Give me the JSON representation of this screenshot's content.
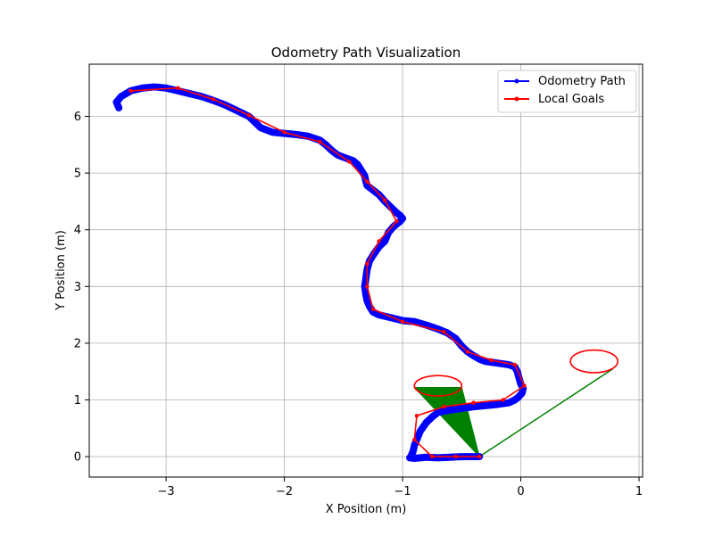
{
  "chart_data": {
    "type": "line",
    "title": "Odometry Path Visualization",
    "xlabel": "X Position (m)",
    "ylabel": "Y Position (m)",
    "xlim": [
      -3.65,
      1.03
    ],
    "ylim": [
      -0.36,
      6.92
    ],
    "xticks": [
      -3,
      -2,
      -1,
      0,
      1
    ],
    "yticks": [
      0,
      1,
      2,
      3,
      4,
      5,
      6
    ],
    "grid": true,
    "legend_position": "top-right",
    "series": [
      {
        "name": "Odometry Path",
        "color": "#0000ff",
        "marker": "dot",
        "x": [
          -3.4,
          -3.42,
          -3.38,
          -3.3,
          -3.2,
          -3.1,
          -3.0,
          -2.9,
          -2.8,
          -2.7,
          -2.6,
          -2.5,
          -2.4,
          -2.3,
          -2.25,
          -2.2,
          -2.1,
          -2.0,
          -1.9,
          -1.8,
          -1.7,
          -1.65,
          -1.6,
          -1.55,
          -1.5,
          -1.42,
          -1.38,
          -1.35,
          -1.32,
          -1.31,
          -1.3,
          -1.25,
          -1.2,
          -1.15,
          -1.1,
          -1.05,
          -1.02,
          -1.0,
          -1.02,
          -1.08,
          -1.12,
          -1.15,
          -1.2,
          -1.25,
          -1.28,
          -1.3,
          -1.31,
          -1.32,
          -1.31,
          -1.3,
          -1.28,
          -1.25,
          -1.2,
          -1.1,
          -1.0,
          -0.9,
          -0.8,
          -0.7,
          -0.62,
          -0.55,
          -0.5,
          -0.45,
          -0.4,
          -0.35,
          -0.3,
          -0.2,
          -0.1,
          -0.05,
          -0.03,
          -0.02,
          -0.01,
          0.0,
          0.02,
          0.01,
          -0.02,
          -0.05,
          -0.1,
          -0.2,
          -0.3,
          -0.4,
          -0.5,
          -0.6,
          -0.7,
          -0.75,
          -0.8,
          -0.85,
          -0.88,
          -0.9,
          -0.91,
          -0.92,
          -0.93,
          -0.94,
          -0.9,
          -0.85,
          -0.8,
          -0.7,
          -0.6,
          -0.5,
          -0.45,
          -0.4,
          -0.35
        ],
        "y": [
          6.15,
          6.25,
          6.35,
          6.45,
          6.5,
          6.52,
          6.5,
          6.45,
          6.4,
          6.35,
          6.28,
          6.2,
          6.1,
          6.0,
          5.9,
          5.8,
          5.72,
          5.7,
          5.68,
          5.65,
          5.58,
          5.5,
          5.4,
          5.32,
          5.28,
          5.22,
          5.15,
          5.05,
          4.95,
          4.85,
          4.78,
          4.7,
          4.62,
          4.5,
          4.4,
          4.3,
          4.25,
          4.2,
          4.15,
          4.05,
          3.95,
          3.8,
          3.7,
          3.55,
          3.45,
          3.3,
          3.15,
          3.0,
          2.85,
          2.75,
          2.65,
          2.55,
          2.5,
          2.45,
          2.4,
          2.38,
          2.32,
          2.25,
          2.18,
          2.08,
          1.95,
          1.85,
          1.78,
          1.72,
          1.68,
          1.65,
          1.62,
          1.58,
          1.5,
          1.42,
          1.35,
          1.28,
          1.2,
          1.12,
          1.05,
          1.0,
          0.95,
          0.92,
          0.9,
          0.88,
          0.85,
          0.82,
          0.78,
          0.7,
          0.6,
          0.45,
          0.3,
          0.2,
          0.1,
          0.05,
          0.0,
          -0.02,
          -0.03,
          -0.02,
          -0.01,
          -0.02,
          -0.01,
          0.0,
          0.0,
          0.0,
          0.0
        ]
      },
      {
        "name": "Local Goals",
        "color": "#ff0000",
        "marker": "dot",
        "x": [
          -3.3,
          -2.9,
          -2.6,
          -2.3,
          -2.0,
          -1.7,
          -1.45,
          -1.3,
          -1.15,
          -1.05,
          -1.2,
          -1.3,
          -1.3,
          -1.25,
          -1.0,
          -0.65,
          -0.45,
          -0.25,
          -0.05,
          0.03,
          -0.15,
          -0.4,
          -0.65,
          -0.88,
          -0.9,
          -0.75,
          -0.55,
          -0.35
        ],
        "y": [
          6.45,
          6.5,
          6.3,
          6.02,
          5.72,
          5.55,
          5.2,
          4.85,
          4.52,
          4.15,
          3.8,
          3.4,
          3.0,
          2.6,
          2.38,
          2.2,
          1.85,
          1.7,
          1.62,
          1.25,
          1.0,
          0.95,
          0.88,
          0.72,
          0.3,
          0.0,
          0.0,
          0.0
        ]
      }
    ],
    "annotations": {
      "circle_left": {
        "cx": -0.7,
        "cy": 1.25,
        "rx": 0.2,
        "ry": 0.18,
        "color": "#ff0000"
      },
      "circle_right": {
        "cx": 0.62,
        "cy": 1.68,
        "rx": 0.2,
        "ry": 0.2,
        "color": "#ff0000"
      },
      "cone": {
        "points": [
          [
            -0.35,
            0.0
          ],
          [
            -0.9,
            1.22
          ],
          [
            -0.5,
            1.22
          ]
        ],
        "color": "#008000"
      },
      "line_to_goal": {
        "points": [
          [
            -0.35,
            0.0
          ],
          [
            0.78,
            1.55
          ]
        ],
        "color": "#008000"
      }
    }
  }
}
